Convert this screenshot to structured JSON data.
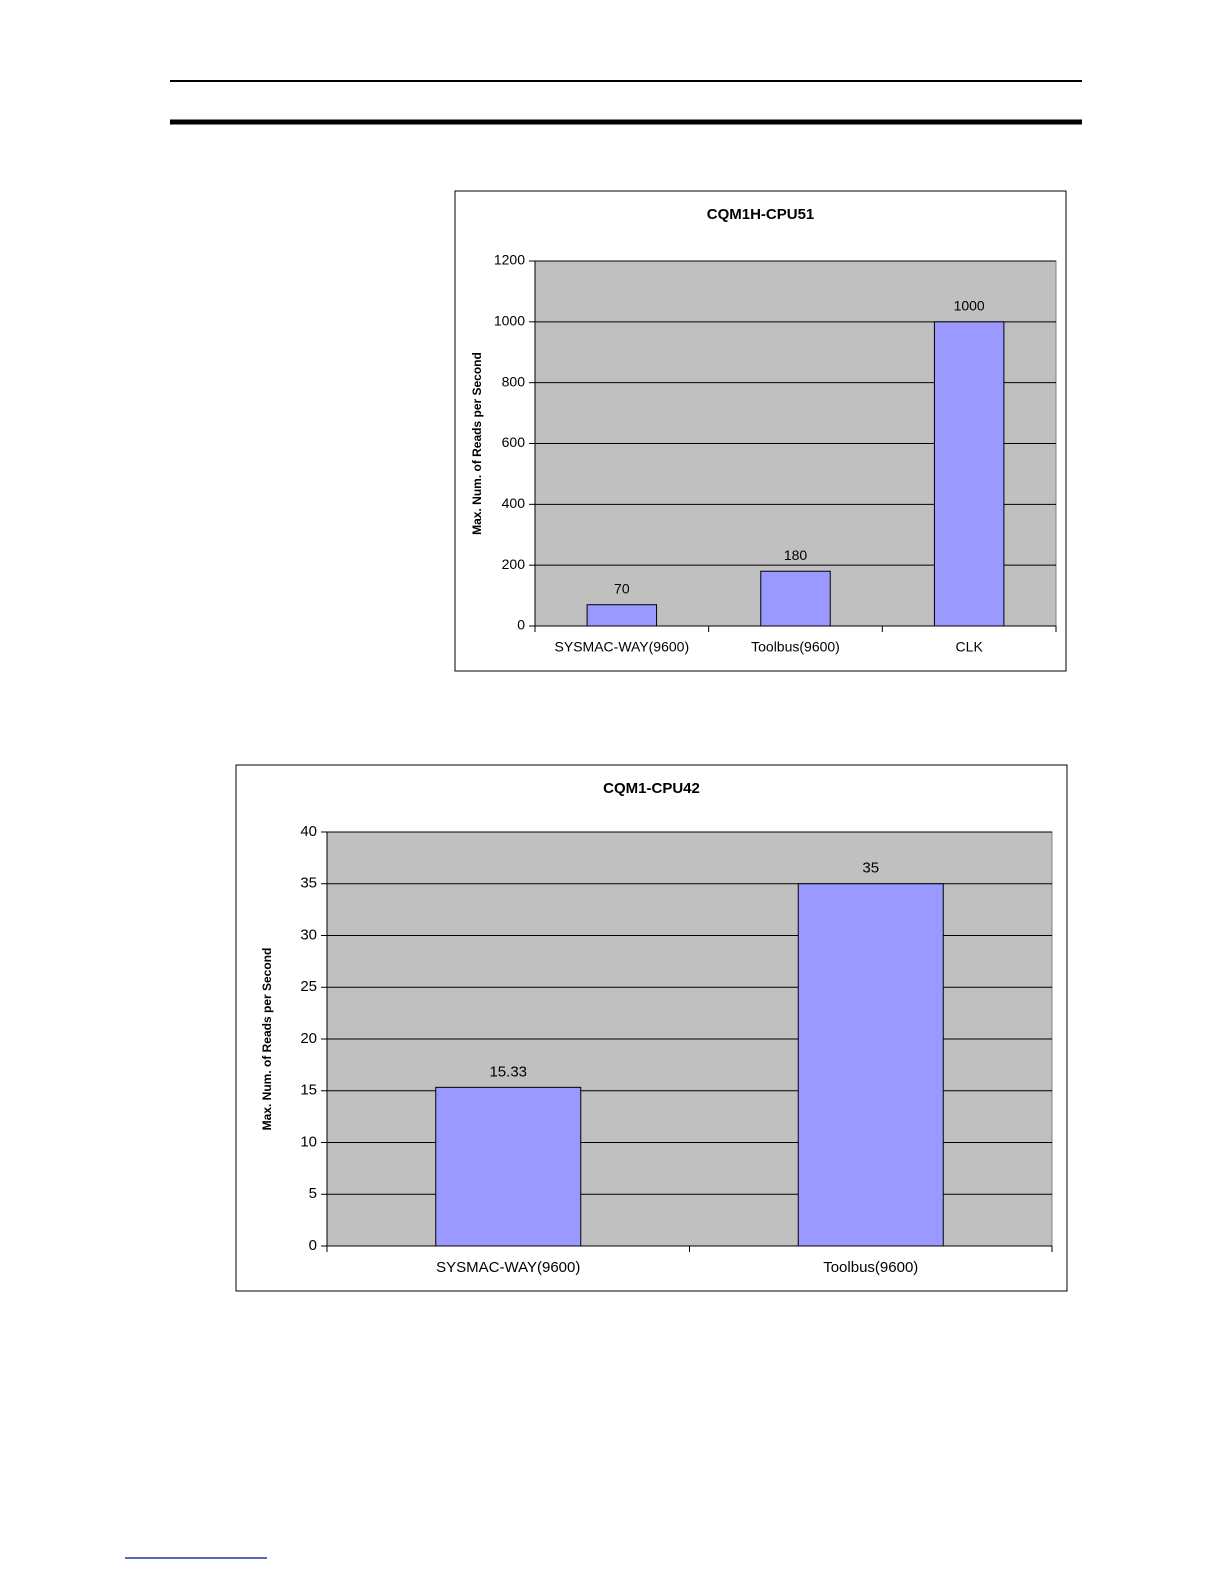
{
  "chart_data": [
    {
      "type": "bar",
      "title": "CQM1H-CPU51",
      "y_label": "Max. Num. of Reads per Second",
      "categories": [
        "SYSMAC-WAY(9600)",
        "Toolbus(9600)",
        "CLK"
      ],
      "values": [
        70,
        180,
        1000
      ],
      "color": "#9999ff",
      "ylim": [
        0,
        1200
      ],
      "yticks": [
        0,
        200,
        400,
        600,
        800,
        1000,
        1200
      ],
      "grid": true
    },
    {
      "type": "bar",
      "title": "CQM1-CPU42",
      "y_label": "Max. Num. of Reads per Second",
      "categories": [
        "SYSMAC-WAY(9600)",
        "Toolbus(9600)"
      ],
      "values": [
        15.33,
        35
      ],
      "color": "#9999ff",
      "ylim": [
        0,
        40
      ],
      "yticks": [
        0,
        5,
        10,
        15,
        20,
        25,
        30,
        35,
        40
      ],
      "grid": true
    }
  ]
}
